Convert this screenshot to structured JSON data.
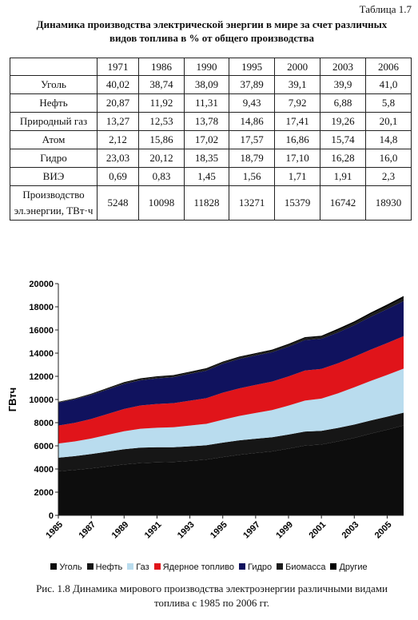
{
  "table": {
    "label": "Таблица 1.7",
    "title": "Динамика производства электрической энергии в мире за счет различных видов топлива в % от общего производства",
    "header": [
      "1971",
      "1986",
      "1990",
      "1995",
      "2000",
      "2003",
      "2006"
    ],
    "rows": [
      [
        "Уголь",
        "40,02",
        "38,74",
        "38,09",
        "37,89",
        "39,1",
        "39,9",
        "41,0"
      ],
      [
        "Нефть",
        "20,87",
        "11,92",
        "11,31",
        "9,43",
        "7,92",
        "6,88",
        "5,8"
      ],
      [
        "Природный газ",
        "13,27",
        "12,53",
        "13,78",
        "14,86",
        "17,41",
        "19,26",
        "20,1"
      ],
      [
        "Атом",
        "2,12",
        "15,86",
        "17,02",
        "17,57",
        "16,86",
        "15,74",
        "14,8"
      ],
      [
        "Гидро",
        "23,03",
        "20,12",
        "18,35",
        "18,79",
        "17,10",
        "16,28",
        "16,0"
      ],
      [
        "ВИЭ",
        "0,69",
        "0,83",
        "1,45",
        "1,56",
        "1,71",
        "1,91",
        "2,3"
      ],
      [
        "Производство эл.энергии, ТВт·ч",
        "5248",
        "10098",
        "11828",
        "13271",
        "15379",
        "16742",
        "18930"
      ]
    ]
  },
  "chart_data": {
    "type": "area",
    "stacked": true,
    "y_label": "ГВтч",
    "x": [
      1985,
      1986,
      1987,
      1988,
      1989,
      1990,
      1991,
      1992,
      1993,
      1994,
      1995,
      1996,
      1997,
      1998,
      1999,
      2000,
      2001,
      2002,
      2003,
      2004,
      2005,
      2006
    ],
    "xlim": [
      1985,
      2006
    ],
    "xticks": [
      1985,
      1987,
      1989,
      1991,
      1993,
      1995,
      1997,
      1999,
      2001,
      2003,
      2005
    ],
    "ylim": [
      0,
      20000
    ],
    "yticks": [
      0,
      2000,
      4000,
      6000,
      8000,
      10000,
      12000,
      14000,
      16000,
      18000,
      20000
    ],
    "grid": false,
    "legend": "bottom",
    "series": [
      {
        "name": "Уголь",
        "color": "#0d0d0d",
        "values": [
          3800,
          3910,
          4050,
          4220,
          4390,
          4505,
          4570,
          4600,
          4700,
          4810,
          5028,
          5220,
          5380,
          5520,
          5760,
          6013,
          6110,
          6380,
          6680,
          7050,
          7390,
          7761
        ]
      },
      {
        "name": "Нефть",
        "color": "#161616",
        "values": [
          1170,
          1200,
          1240,
          1280,
          1320,
          1338,
          1310,
          1280,
          1260,
          1240,
          1251,
          1250,
          1230,
          1220,
          1210,
          1218,
          1180,
          1160,
          1152,
          1140,
          1130,
          1098
        ]
      },
      {
        "name": "Газ",
        "color": "#b9dcee",
        "values": [
          1230,
          1270,
          1340,
          1450,
          1550,
          1630,
          1680,
          1720,
          1790,
          1850,
          1972,
          2110,
          2230,
          2350,
          2500,
          2677,
          2790,
          2990,
          3224,
          3410,
          3600,
          3805
        ]
      },
      {
        "name": "Ядерное топливо",
        "color": "#e0141a",
        "values": [
          1550,
          1600,
          1690,
          1800,
          1920,
          2013,
          2050,
          2080,
          2150,
          2210,
          2332,
          2380,
          2420,
          2450,
          2520,
          2593,
          2560,
          2590,
          2635,
          2700,
          2750,
          2802
        ]
      },
      {
        "name": "Гидро",
        "color": "#10125e",
        "values": [
          1970,
          2030,
          2070,
          2110,
          2160,
          2170,
          2210,
          2240,
          2310,
          2370,
          2494,
          2530,
          2530,
          2540,
          2570,
          2630,
          2600,
          2660,
          2726,
          2840,
          2930,
          3029
        ]
      },
      {
        "name": "Биомасса",
        "color": "#1c1c1c",
        "values": [
          50,
          50,
          60,
          80,
          90,
          100,
          100,
          100,
          110,
          120,
          120,
          120,
          120,
          130,
          140,
          150,
          160,
          180,
          190,
          210,
          230,
          250
        ]
      },
      {
        "name": "Другие",
        "color": "#000000",
        "values": [
          30,
          38,
          50,
          60,
          70,
          72,
          80,
          80,
          80,
          100,
          74,
          90,
          90,
          90,
          100,
          98,
          100,
          140,
          135,
          150,
          170,
          185
        ]
      }
    ],
    "caption": "Рис. 1.8 Динамика мирового производства электроэнергии различными видами топлива с 1985 по 2006 гг."
  }
}
